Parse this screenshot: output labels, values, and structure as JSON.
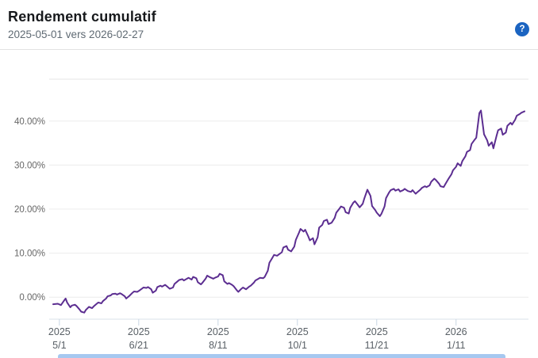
{
  "header": {
    "title": "Rendement cumulatif",
    "subtitle": "2025-05-01 vers 2026-02-27",
    "help_icon": "?"
  },
  "colors": {
    "line": "#5c2e91",
    "grid": "#ececec",
    "plot_top_border": "#e4e4e4",
    "axis_line": "#d9e1e8",
    "tick_mark": "#c9d7e4",
    "y_label": "#666666",
    "x_label": "#596066",
    "help_bg": "#1b64c1",
    "scrollbar": "#a6c8f0"
  },
  "chart_data": {
    "type": "line",
    "title": "Rendement cumulatif",
    "x_start_date": "2025-05-01",
    "x_end_date": "2026-02-27",
    "total_days": 303,
    "ylim": [
      -5,
      49.5
    ],
    "grid": "horizontal",
    "legend_position": "none",
    "y_ticks": [
      {
        "value": 40,
        "label": "40.00%"
      },
      {
        "value": 30,
        "label": "30.00%"
      },
      {
        "value": 20,
        "label": "20.00%"
      },
      {
        "value": 10,
        "label": "10.00%"
      },
      {
        "value": 0,
        "label": "0.00%"
      }
    ],
    "x_ticks": [
      {
        "day": 4,
        "year": "2025",
        "date": "5/1"
      },
      {
        "day": 55,
        "year": "2025",
        "date": "6/21"
      },
      {
        "day": 106,
        "year": "2025",
        "date": "8/11"
      },
      {
        "day": 157,
        "year": "2025",
        "date": "10/1"
      },
      {
        "day": 208,
        "year": "2025",
        "date": "11/21"
      },
      {
        "day": 259,
        "year": "2026",
        "date": "1/11"
      }
    ],
    "series": [
      {
        "name": "Rendement cumulatif",
        "unit": "%",
        "points": [
          [
            0,
            -1.6
          ],
          [
            3,
            -1.5
          ],
          [
            5,
            -1.8
          ],
          [
            7,
            -0.8
          ],
          [
            8,
            -0.3
          ],
          [
            9,
            -1.2
          ],
          [
            11,
            -2.3
          ],
          [
            12,
            -1.9
          ],
          [
            14,
            -1.7
          ],
          [
            15,
            -2.0
          ],
          [
            17,
            -2.8
          ],
          [
            18,
            -3.3
          ],
          [
            20,
            -3.5
          ],
          [
            21,
            -2.9
          ],
          [
            23,
            -2.2
          ],
          [
            25,
            -2.5
          ],
          [
            26,
            -2.1
          ],
          [
            28,
            -1.5
          ],
          [
            29,
            -1.2
          ],
          [
            31,
            -1.4
          ],
          [
            32,
            -0.9
          ],
          [
            34,
            -0.3
          ],
          [
            35,
            0.2
          ],
          [
            37,
            0.4
          ],
          [
            38,
            0.7
          ],
          [
            40,
            0.8
          ],
          [
            41,
            0.6
          ],
          [
            43,
            0.9
          ],
          [
            44,
            0.7
          ],
          [
            46,
            0.2
          ],
          [
            47,
            -0.3
          ],
          [
            49,
            0.3
          ],
          [
            51,
            1.0
          ],
          [
            52,
            1.3
          ],
          [
            54,
            1.2
          ],
          [
            55,
            1.4
          ],
          [
            57,
            1.9
          ],
          [
            58,
            2.2
          ],
          [
            60,
            2.1
          ],
          [
            61,
            2.3
          ],
          [
            63,
            1.8
          ],
          [
            64,
            1.0
          ],
          [
            66,
            1.5
          ],
          [
            67,
            2.3
          ],
          [
            69,
            2.6
          ],
          [
            70,
            2.4
          ],
          [
            72,
            2.8
          ],
          [
            73,
            2.5
          ],
          [
            75,
            1.9
          ],
          [
            77,
            2.2
          ],
          [
            78,
            3.0
          ],
          [
            80,
            3.6
          ],
          [
            81,
            3.9
          ],
          [
            83,
            4.1
          ],
          [
            84,
            3.8
          ],
          [
            86,
            4.2
          ],
          [
            87,
            4.4
          ],
          [
            89,
            4.0
          ],
          [
            90,
            4.6
          ],
          [
            92,
            4.3
          ],
          [
            93,
            3.4
          ],
          [
            95,
            2.9
          ],
          [
            96,
            3.3
          ],
          [
            98,
            4.2
          ],
          [
            99,
            4.9
          ],
          [
            101,
            4.5
          ],
          [
            103,
            4.2
          ],
          [
            104,
            4.4
          ],
          [
            106,
            4.7
          ],
          [
            107,
            5.3
          ],
          [
            109,
            5.0
          ],
          [
            110,
            3.6
          ],
          [
            112,
            3.0
          ],
          [
            113,
            3.2
          ],
          [
            115,
            2.8
          ],
          [
            116,
            2.5
          ],
          [
            118,
            1.6
          ],
          [
            119,
            1.2
          ],
          [
            121,
            1.9
          ],
          [
            122,
            2.2
          ],
          [
            124,
            1.8
          ],
          [
            126,
            2.4
          ],
          [
            127,
            2.6
          ],
          [
            129,
            3.3
          ],
          [
            130,
            3.8
          ],
          [
            132,
            4.2
          ],
          [
            133,
            4.4
          ],
          [
            135,
            4.3
          ],
          [
            136,
            4.6
          ],
          [
            138,
            6.0
          ],
          [
            139,
            7.8
          ],
          [
            141,
            9.0
          ],
          [
            142,
            9.6
          ],
          [
            144,
            9.4
          ],
          [
            145,
            9.7
          ],
          [
            147,
            10.2
          ],
          [
            148,
            11.3
          ],
          [
            150,
            11.6
          ],
          [
            151,
            10.8
          ],
          [
            153,
            10.4
          ],
          [
            155,
            11.5
          ],
          [
            156,
            13.0
          ],
          [
            158,
            14.6
          ],
          [
            159,
            15.5
          ],
          [
            161,
            14.9
          ],
          [
            162,
            15.3
          ],
          [
            164,
            13.8
          ],
          [
            165,
            12.9
          ],
          [
            167,
            13.4
          ],
          [
            168,
            12.0
          ],
          [
            170,
            13.6
          ],
          [
            171,
            15.8
          ],
          [
            173,
            16.4
          ],
          [
            174,
            17.3
          ],
          [
            176,
            17.6
          ],
          [
            177,
            16.6
          ],
          [
            179,
            16.9
          ],
          [
            181,
            18.0
          ],
          [
            182,
            19.2
          ],
          [
            184,
            20.1
          ],
          [
            185,
            20.6
          ],
          [
            187,
            20.3
          ],
          [
            188,
            19.3
          ],
          [
            190,
            19.0
          ],
          [
            191,
            20.3
          ],
          [
            193,
            21.5
          ],
          [
            194,
            21.8
          ],
          [
            196,
            20.9
          ],
          [
            197,
            20.4
          ],
          [
            199,
            21.2
          ],
          [
            200,
            22.4
          ],
          [
            202,
            24.4
          ],
          [
            204,
            23.0
          ],
          [
            205,
            20.7
          ],
          [
            207,
            19.8
          ],
          [
            208,
            19.2
          ],
          [
            210,
            18.4
          ],
          [
            211,
            18.9
          ],
          [
            213,
            20.6
          ],
          [
            214,
            22.5
          ],
          [
            216,
            23.8
          ],
          [
            217,
            24.3
          ],
          [
            219,
            24.6
          ],
          [
            220,
            24.2
          ],
          [
            222,
            24.5
          ],
          [
            223,
            24.0
          ],
          [
            225,
            24.3
          ],
          [
            226,
            24.6
          ],
          [
            228,
            24.1
          ],
          [
            230,
            23.9
          ],
          [
            231,
            24.3
          ],
          [
            233,
            23.5
          ],
          [
            234,
            23.8
          ],
          [
            236,
            24.4
          ],
          [
            237,
            24.8
          ],
          [
            239,
            25.2
          ],
          [
            240,
            25.0
          ],
          [
            242,
            25.4
          ],
          [
            243,
            26.2
          ],
          [
            245,
            26.9
          ],
          [
            246,
            26.6
          ],
          [
            248,
            25.8
          ],
          [
            249,
            25.2
          ],
          [
            251,
            25.0
          ],
          [
            252,
            25.6
          ],
          [
            254,
            26.8
          ],
          [
            256,
            27.9
          ],
          [
            257,
            28.8
          ],
          [
            259,
            29.6
          ],
          [
            260,
            30.4
          ],
          [
            262,
            29.8
          ],
          [
            263,
            30.9
          ],
          [
            265,
            32.0
          ],
          [
            266,
            33.0
          ],
          [
            268,
            33.4
          ],
          [
            269,
            34.8
          ],
          [
            271,
            35.8
          ],
          [
            272,
            36.2
          ],
          [
            274,
            41.8
          ],
          [
            275,
            42.4
          ],
          [
            277,
            37.0
          ],
          [
            279,
            35.6
          ],
          [
            280,
            34.4
          ],
          [
            282,
            35.2
          ],
          [
            283,
            33.8
          ],
          [
            285,
            36.6
          ],
          [
            286,
            37.9
          ],
          [
            288,
            38.3
          ],
          [
            289,
            36.9
          ],
          [
            291,
            37.4
          ],
          [
            292,
            38.9
          ],
          [
            294,
            39.6
          ],
          [
            295,
            39.2
          ],
          [
            297,
            40.3
          ],
          [
            298,
            41.2
          ],
          [
            300,
            41.6
          ],
          [
            301,
            41.9
          ],
          [
            303,
            42.2
          ]
        ]
      }
    ]
  }
}
